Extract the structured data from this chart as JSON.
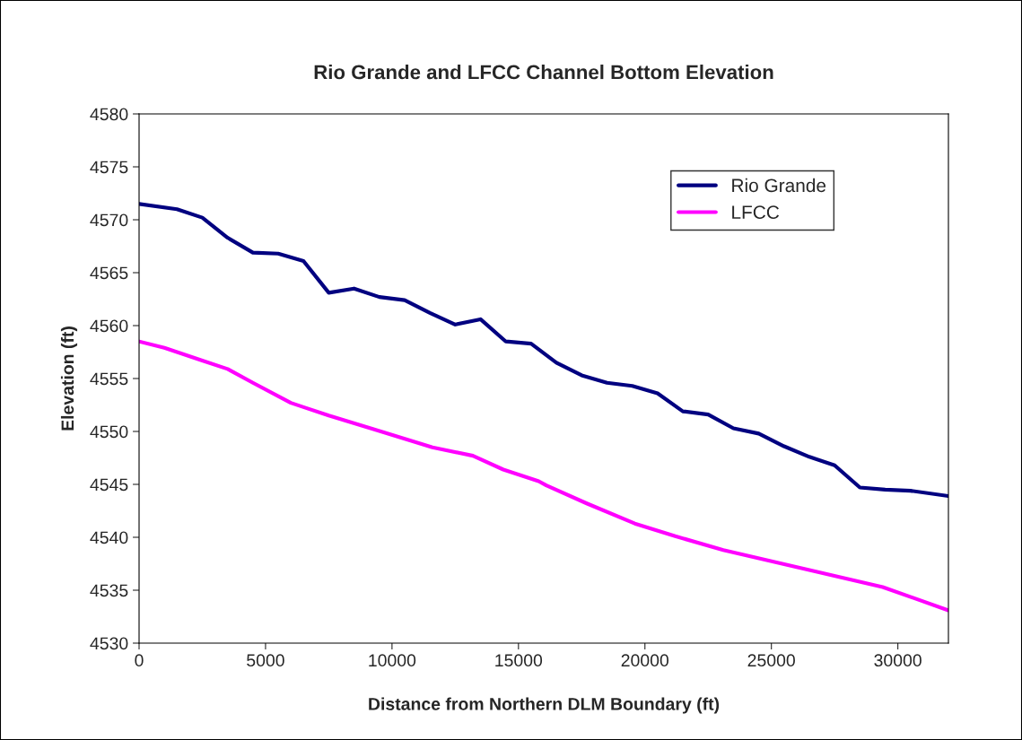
{
  "chart_data": {
    "type": "line",
    "title": "Rio Grande and LFCC Channel Bottom Elevation",
    "xlabel": "Distance from Northern DLM Boundary (ft)",
    "ylabel": "Elevation (ft)",
    "xlim": [
      0,
      32000
    ],
    "xticks": [
      0,
      5000,
      10000,
      15000,
      20000,
      25000,
      30000
    ],
    "ylim": [
      4530,
      4580
    ],
    "yticks": [
      4530,
      4535,
      4540,
      4545,
      4550,
      4555,
      4560,
      4565,
      4570,
      4575,
      4580
    ],
    "grid": false,
    "legend": "top right",
    "line_style": "solid",
    "marker": "none",
    "series": [
      {
        "name": "Rio Grande",
        "color": "#000080",
        "x": [
          0,
          1500,
          2500,
          3500,
          4500,
          5500,
          6500,
          7500,
          8500,
          9500,
          10500,
          11500,
          12500,
          13500,
          14500,
          15500,
          16500,
          17500,
          18500,
          19500,
          20500,
          21500,
          22500,
          23500,
          24500,
          25500,
          26500,
          27500,
          28500,
          29500,
          30500,
          32000
        ],
        "values": [
          4571.5,
          4571.0,
          4570.2,
          4568.3,
          4566.9,
          4566.8,
          4566.1,
          4563.1,
          4563.5,
          4562.7,
          4562.4,
          4561.2,
          4560.1,
          4560.6,
          4558.5,
          4558.3,
          4556.5,
          4555.3,
          4554.6,
          4554.3,
          4553.6,
          4551.9,
          4551.6,
          4550.3,
          4549.8,
          4548.6,
          4547.6,
          4546.8,
          4544.7,
          4544.5,
          4544.4,
          4543.9
        ]
      },
      {
        "name": "LFCC",
        "color": "#ff00ff",
        "x": [
          0,
          1000,
          2500,
          3500,
          4500,
          6000,
          6500,
          7500,
          9300,
          11600,
          13200,
          14400,
          15800,
          16100,
          17700,
          19600,
          21200,
          23100,
          26500,
          29400,
          32000
        ],
        "values": [
          4558.5,
          4557.9,
          4556.7,
          4555.9,
          4554.6,
          4552.7,
          4552.3,
          4551.5,
          4550.2,
          4548.5,
          4547.7,
          4546.4,
          4545.3,
          4544.9,
          4543.2,
          4541.3,
          4540.1,
          4538.8,
          4536.9,
          4535.3,
          4533.1
        ]
      }
    ]
  }
}
